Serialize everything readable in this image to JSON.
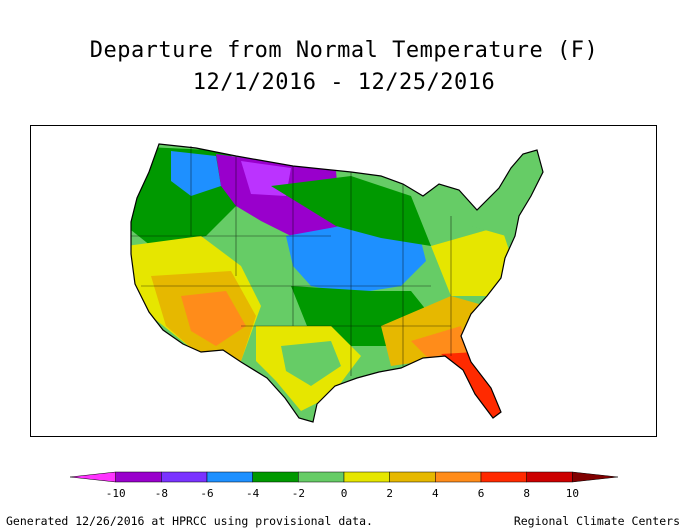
{
  "title": {
    "line1": "Departure from Normal Temperature (F)",
    "line2": "12/1/2016 - 12/25/2016"
  },
  "legend": {
    "ticks": [
      "-10",
      "-8",
      "-6",
      "-4",
      "-2",
      "0",
      "2",
      "4",
      "6",
      "8",
      "10"
    ],
    "colors": [
      "#ff33ff",
      "#9900cc",
      "#7a33ff",
      "#1e90ff",
      "#009900",
      "#66cc66",
      "#e6e600",
      "#e6b800",
      "#ff8c1a",
      "#ff2a00",
      "#cc0000",
      "#800000"
    ]
  },
  "footer": {
    "left": "Generated 12/26/2016 at HPRCC using provisional data.",
    "right": "Regional Climate Centers"
  },
  "regions": [
    {
      "name": "great-plains-north",
      "color": "#9900cc"
    },
    {
      "name": "midwest-west",
      "color": "#1e90ff"
    },
    {
      "name": "northwest",
      "color": "#009900"
    },
    {
      "name": "southwest",
      "color": "#e6b800"
    },
    {
      "name": "southeast",
      "color": "#ff8c1a"
    },
    {
      "name": "florida",
      "color": "#ff2a00"
    },
    {
      "name": "northeast",
      "color": "#66cc66"
    }
  ]
}
